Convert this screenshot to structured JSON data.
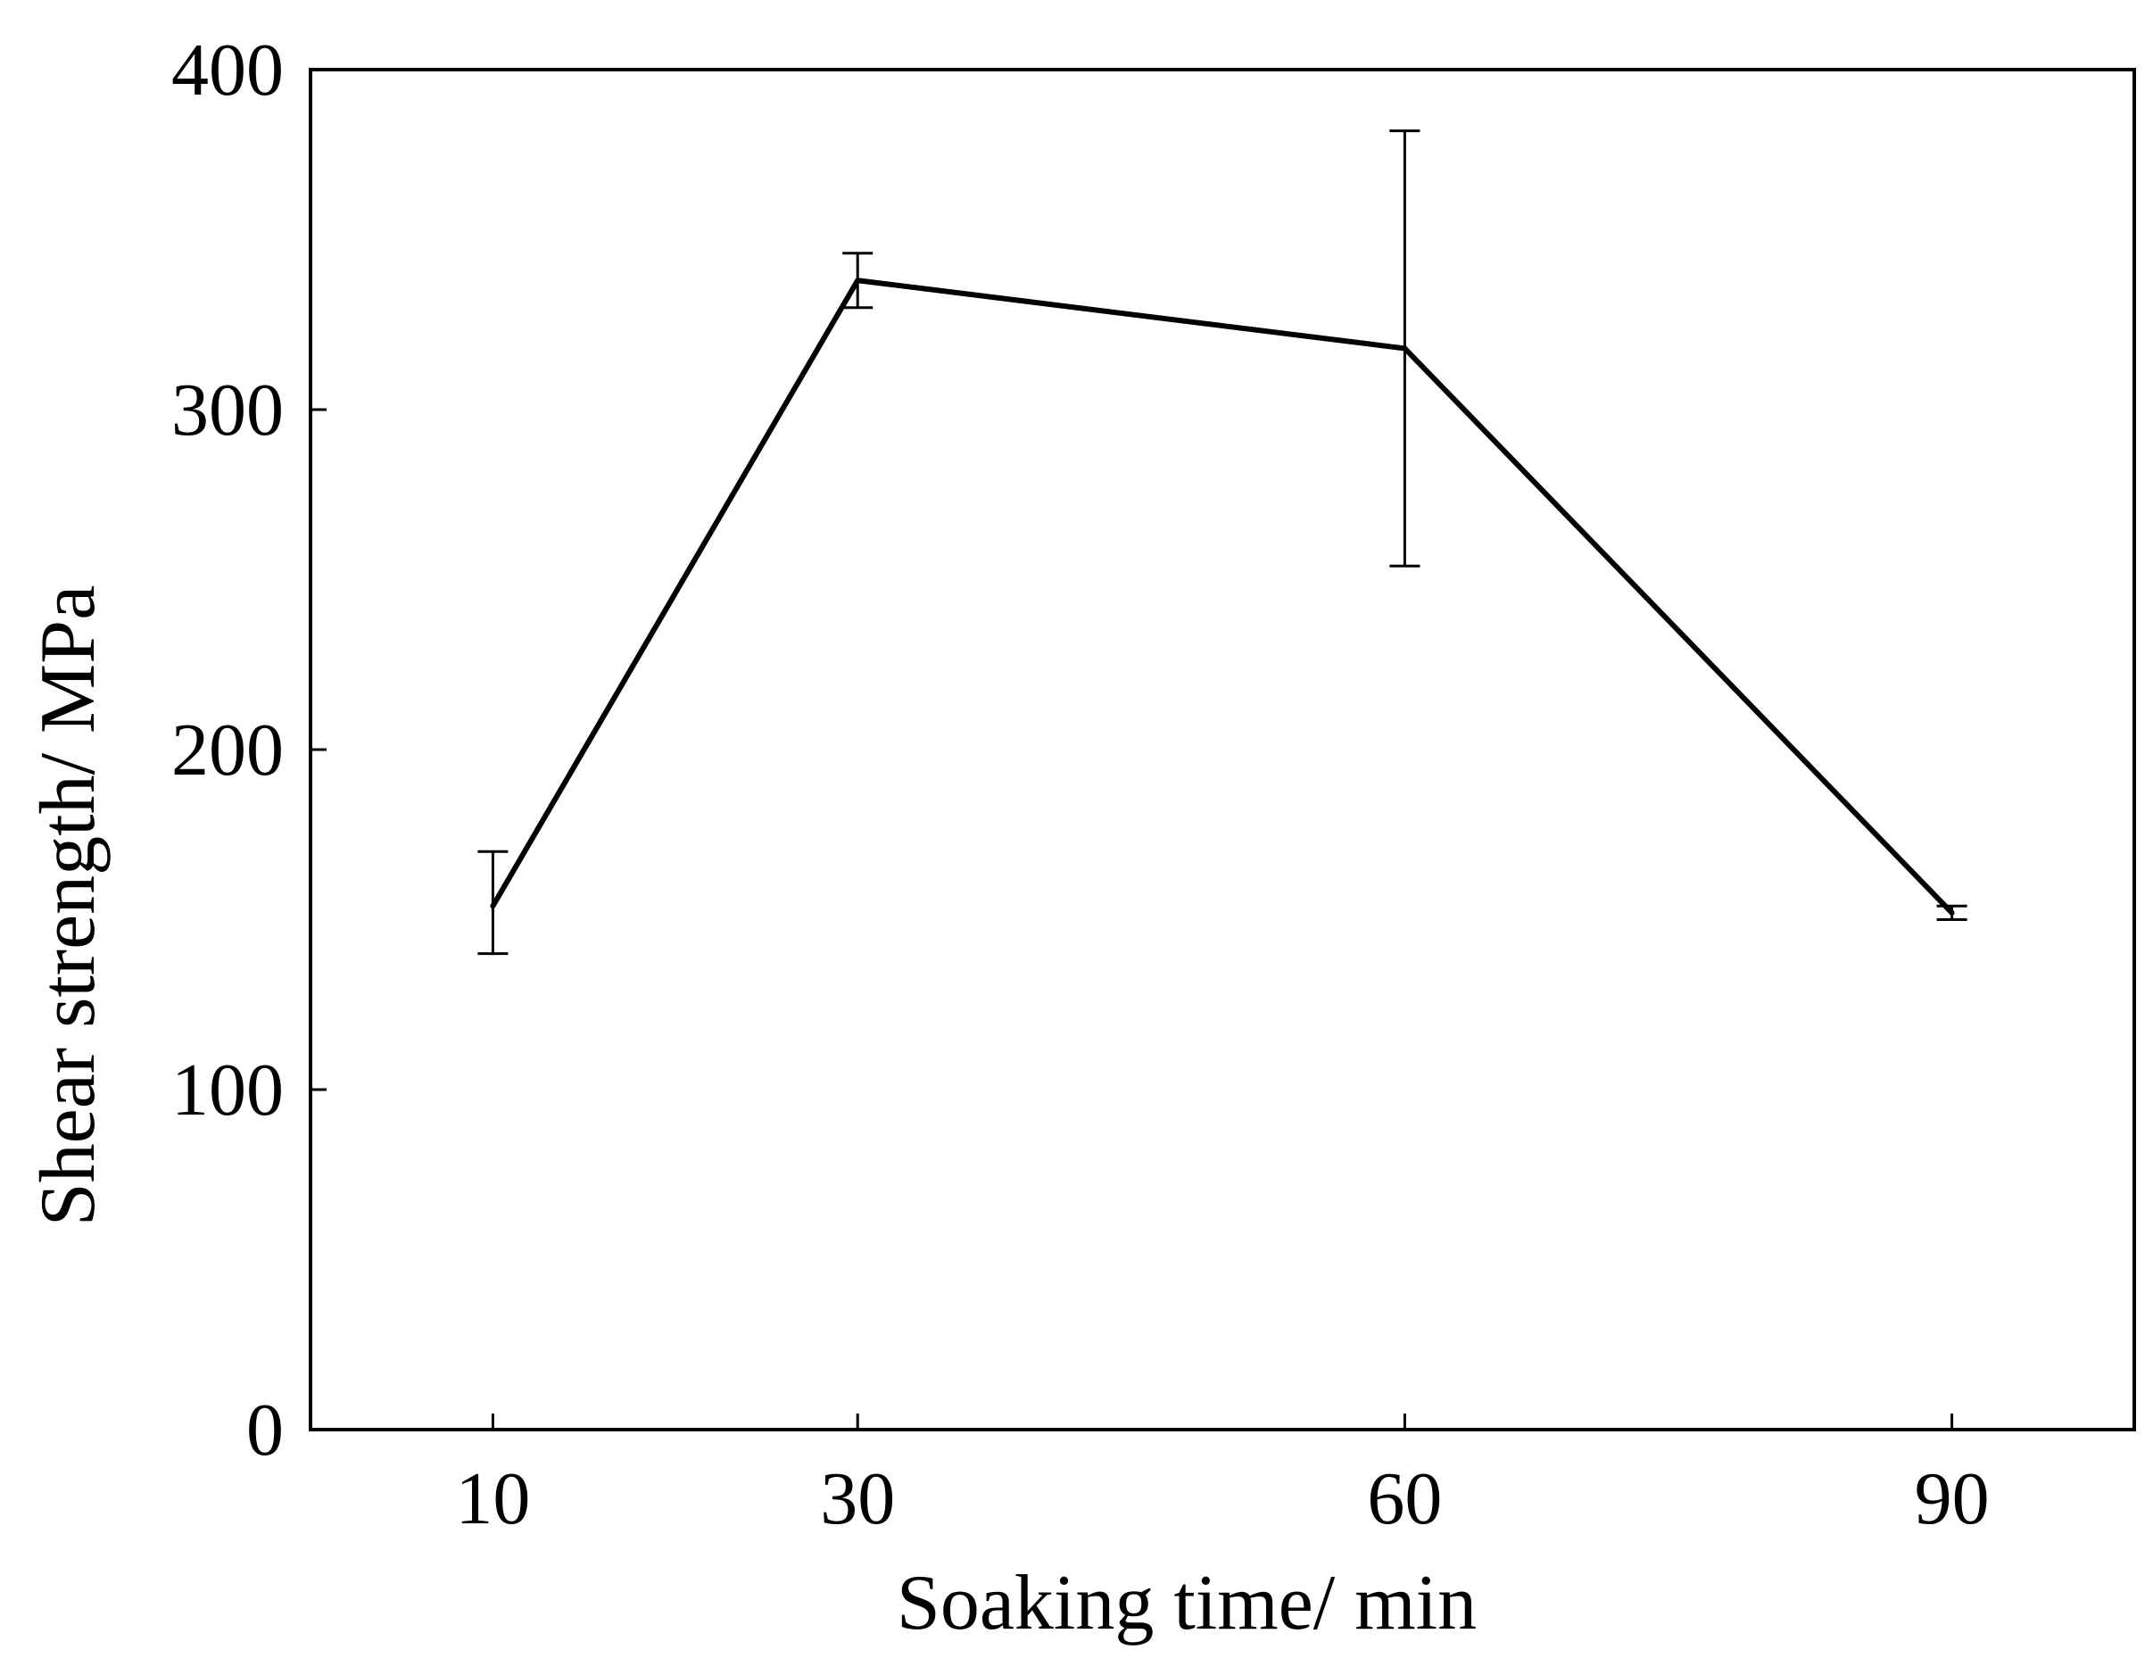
{
  "chart_data": {
    "type": "line",
    "title": "",
    "xlabel": "Soaking time/ min",
    "ylabel": "Shear strength/ MPa",
    "categories": [
      "10",
      "30",
      "60",
      "90"
    ],
    "x": [
      10,
      30,
      60,
      90
    ],
    "xlim": [
      0,
      100
    ],
    "ylim": [
      0,
      400
    ],
    "yticks": [
      0,
      100,
      200,
      300,
      400
    ],
    "yticks_labels": [
      "0",
      "100",
      "200",
      "300",
      "400"
    ],
    "grid": false,
    "legend": "none",
    "series": [
      {
        "values": [
          154,
          338,
          318,
          152
        ],
        "error_low": [
          140,
          330,
          254,
          150
        ],
        "error_high": [
          170,
          346,
          382,
          154
        ],
        "color": "#000000"
      }
    ]
  }
}
